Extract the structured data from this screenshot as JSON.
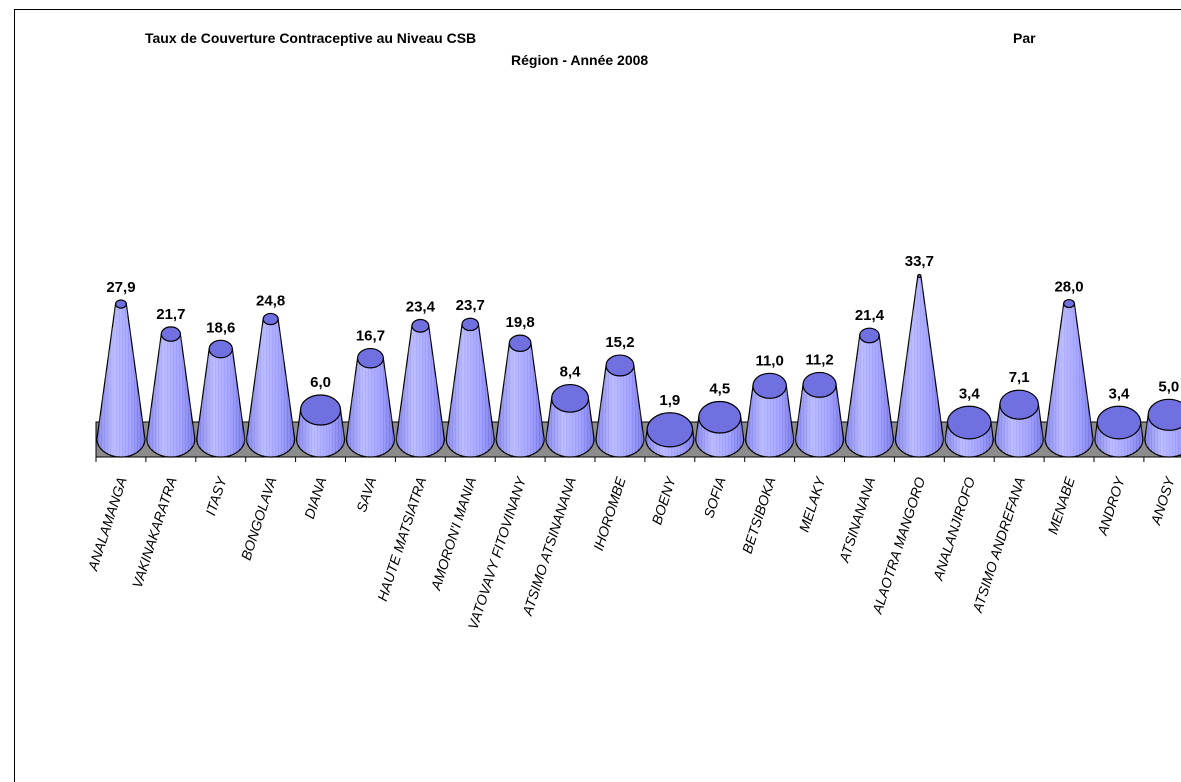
{
  "title": {
    "line1": "Taux de Couverture Contraceptive au Niveau CSB",
    "par": "Par",
    "line2": "Région - Année 2008"
  },
  "chart_data": {
    "type": "bar",
    "style": "3d-cone",
    "categories": [
      "ANALAMANGA",
      "VAKINAKARATRA",
      "ITASY",
      "BONGOLAVA",
      "DIANA",
      "SAVA",
      "HAUTE MATSIATRA",
      "AMORON'I MANIA",
      "VATOVAVY FITOVINANY",
      "ATSIMO ATSINANANA",
      "IHOROMBE",
      "BOENY",
      "SOFIA",
      "BETSIBOKA",
      "MELAKY",
      "ATSINANANA",
      "ALAOTRA MANGORO",
      "ANALANJIROFO",
      "ATSIMO ANDREFANA",
      "MENABE",
      "ANDROY",
      "ANOSY"
    ],
    "values": [
      27.9,
      21.7,
      18.6,
      24.8,
      6.0,
      16.7,
      23.4,
      23.7,
      19.8,
      8.4,
      15.2,
      1.9,
      4.5,
      11.0,
      11.2,
      21.4,
      33.7,
      3.4,
      7.1,
      28.0,
      3.4,
      5.0
    ],
    "labels": [
      "27,9",
      "21,7",
      "18,6",
      "24,8",
      "6,0",
      "16,7",
      "23,4",
      "23,7",
      "19,8",
      "8,4",
      "15,2",
      "1,9",
      "4,5",
      "11,0",
      "11,2",
      "21,4",
      "33,7",
      "3,4",
      "7,1",
      "28,0",
      "3,4",
      "5,0"
    ],
    "colors": {
      "bar": "#9999ff",
      "bar_dark": "#5b5bd6",
      "floor": "#8c8c8c",
      "outline": "#000000"
    },
    "grid": false,
    "legend": "none"
  }
}
